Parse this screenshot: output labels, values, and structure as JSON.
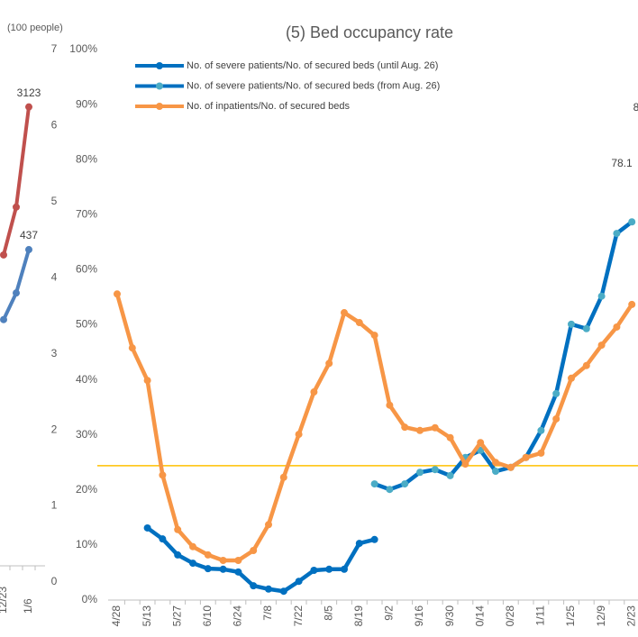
{
  "chart_data": [
    {
      "type": "line",
      "axis_label": "(100 people)",
      "categories": [
        "12/23",
        null,
        "1/6"
      ],
      "ylim": [
        0,
        7
      ],
      "yticks": [
        0,
        1,
        2,
        3,
        4,
        5,
        6,
        7
      ],
      "y2lim": [
        0,
        3500
      ],
      "series": [
        {
          "color": "#c0504d",
          "axis": "y2",
          "values": [
            2150,
            2465,
            3123
          ],
          "value_labels": [
            null,
            null,
            "3123"
          ]
        },
        {
          "color": "#4f81bd",
          "values": [
            3.45,
            3.8,
            4.37
          ],
          "value_labels": [
            null,
            null,
            "437"
          ]
        }
      ]
    },
    {
      "type": "line",
      "title": "(5) Bed occupancy rate",
      "categories": [
        "4/28",
        null,
        "5/13",
        null,
        "5/27",
        null,
        "6/10",
        null,
        "6/24",
        null,
        "7/8",
        null,
        "7/22",
        null,
        "8/5",
        null,
        "8/19",
        null,
        "9/2",
        null,
        "9/16",
        null,
        "9/30",
        null,
        "0/14",
        null,
        "0/28",
        null,
        "1/11",
        null,
        "1/25",
        null,
        "12/9",
        null,
        "2/23"
      ],
      "ylim": [
        0,
        100
      ],
      "yticks": [
        {
          "value": 0,
          "label": "0%"
        },
        {
          "value": 10,
          "label": "10%"
        },
        {
          "value": 20,
          "label": "20%"
        },
        {
          "value": 30,
          "label": "30%"
        },
        {
          "value": 40,
          "label": "40%"
        },
        {
          "value": 50,
          "label": "50%"
        },
        {
          "value": 60,
          "label": "60%"
        },
        {
          "value": 70,
          "label": "70%"
        },
        {
          "value": 80,
          "label": "80%"
        },
        {
          "value": 90,
          "label": "90%"
        },
        {
          "value": 100,
          "label": "100%"
        }
      ],
      "reference_line": {
        "value": 24.4,
        "color": "#ffc000"
      },
      "annotations": [
        "78.1",
        "8"
      ],
      "series": [
        {
          "name": "No. of severe patients/No. of secured beds (until Aug. 26)",
          "color": "#0070c0",
          "marker_color": "#0070c0",
          "values": [
            null,
            null,
            13.1,
            11.1,
            8.2,
            6.7,
            5.7,
            5.6,
            5.1,
            2.6,
            2.0,
            1.6,
            3.4,
            5.4,
            5.6,
            5.6,
            10.3,
            11.0,
            null,
            null,
            null,
            null,
            null,
            null,
            null,
            null,
            null,
            null,
            null,
            null,
            null,
            null,
            null,
            null,
            null
          ]
        },
        {
          "name": "No. of severe patients/No. of secured beds (from Aug. 26)",
          "color": "#0070c0",
          "marker_color": "#4bacc6",
          "values": [
            null,
            null,
            null,
            null,
            null,
            null,
            null,
            null,
            null,
            null,
            null,
            null,
            null,
            null,
            null,
            null,
            null,
            21.1,
            20.1,
            21.1,
            23.2,
            23.7,
            22.6,
            25.9,
            27.2,
            23.4,
            24.1,
            25.9,
            30.8,
            37.5,
            50.1,
            49.3,
            55.2,
            66.6,
            68.7
          ]
        },
        {
          "name": "No. of inpatients/No. of secured beds",
          "color": "#f79646",
          "marker_color": "#f79646",
          "values": [
            55.6,
            45.8,
            39.9,
            22.7,
            12.8,
            9.7,
            8.2,
            7.2,
            7.2,
            9.0,
            13.7,
            22.3,
            30.1,
            37.8,
            43.0,
            52.2,
            50.4,
            48.1,
            35.4,
            31.4,
            30.8,
            31.3,
            29.5,
            24.7,
            28.6,
            25.0,
            24.1,
            25.9,
            26.7,
            32.9,
            40.3,
            42.6,
            46.3,
            49.6,
            53.7
          ]
        }
      ]
    }
  ]
}
